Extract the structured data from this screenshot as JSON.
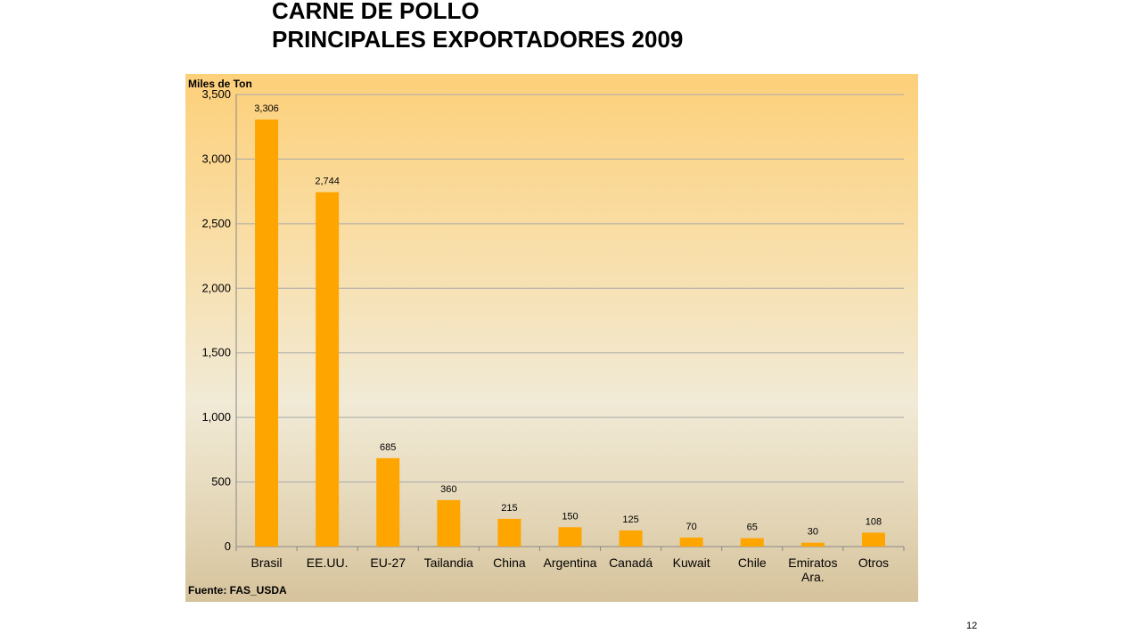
{
  "slide": {
    "title_line1": "CARNE DE POLLO",
    "title_line2": "PRINCIPALES EXPORTADORES 2009",
    "page_number": "12"
  },
  "chart_data": {
    "type": "bar",
    "ylabel": "Miles de Ton",
    "source": "Fuente: FAS_USDA",
    "categories": [
      [
        "Brasil"
      ],
      [
        "EE.UU."
      ],
      [
        "EU-27"
      ],
      [
        "Tailandia"
      ],
      [
        "China"
      ],
      [
        "Argentina"
      ],
      [
        "Canadá"
      ],
      [
        "Kuwait"
      ],
      [
        "Chile"
      ],
      [
        "Emiratos",
        "Ara."
      ],
      [
        "Otros"
      ]
    ],
    "values": [
      3306,
      2744,
      685,
      360,
      215,
      150,
      125,
      70,
      65,
      30,
      108
    ],
    "data_labels": [
      "3,306",
      "2,744",
      "685",
      "360",
      "215",
      "150",
      "125",
      "70",
      "65",
      "30",
      "108"
    ],
    "ylim": [
      0,
      3500
    ],
    "yticks": [
      0,
      500,
      1000,
      1500,
      2000,
      2500,
      3000,
      3500
    ],
    "ytick_labels": [
      "0",
      "500",
      "1,000",
      "1,500",
      "2,000",
      "2,500",
      "3,000",
      "3,500"
    ],
    "grid": true,
    "legend": "none",
    "colors": {
      "bar": "#ffa500",
      "grid": "#a8a8a8",
      "axis": "#888888"
    }
  }
}
